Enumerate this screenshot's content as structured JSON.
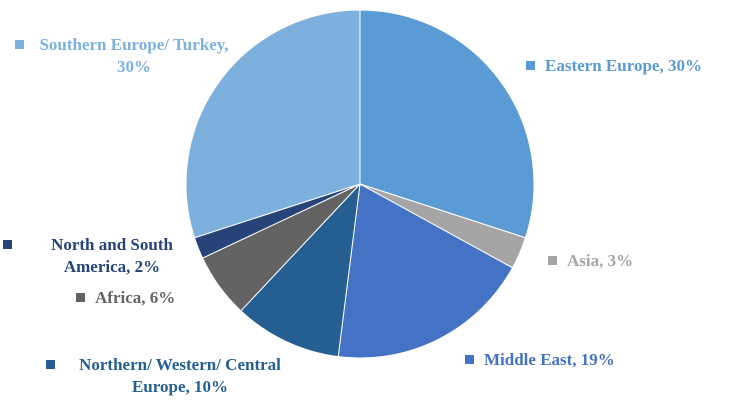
{
  "chart_data": {
    "type": "pie",
    "value_labels": [
      "Eastern Europe, 30%",
      "Asia, 3%",
      "Middle East, 19%",
      "Northern/ Western/ Central Europe, 10%",
      "Africa, 6%",
      "North and South America, 2%",
      "Southern Europe/ Turkey, 30%"
    ],
    "values": [
      30,
      3,
      19,
      10,
      6,
      2,
      30
    ],
    "colors": [
      "#5b9bd5",
      "#a5a5a5",
      "#4472c4",
      "#255e91",
      "#636363",
      "#264478",
      "#7eb0de"
    ],
    "label_colors": [
      "#5b9bd5",
      "#a5a5a5",
      "#4472c4",
      "#255e91",
      "#636363",
      "#264478",
      "#7eb0de"
    ]
  }
}
